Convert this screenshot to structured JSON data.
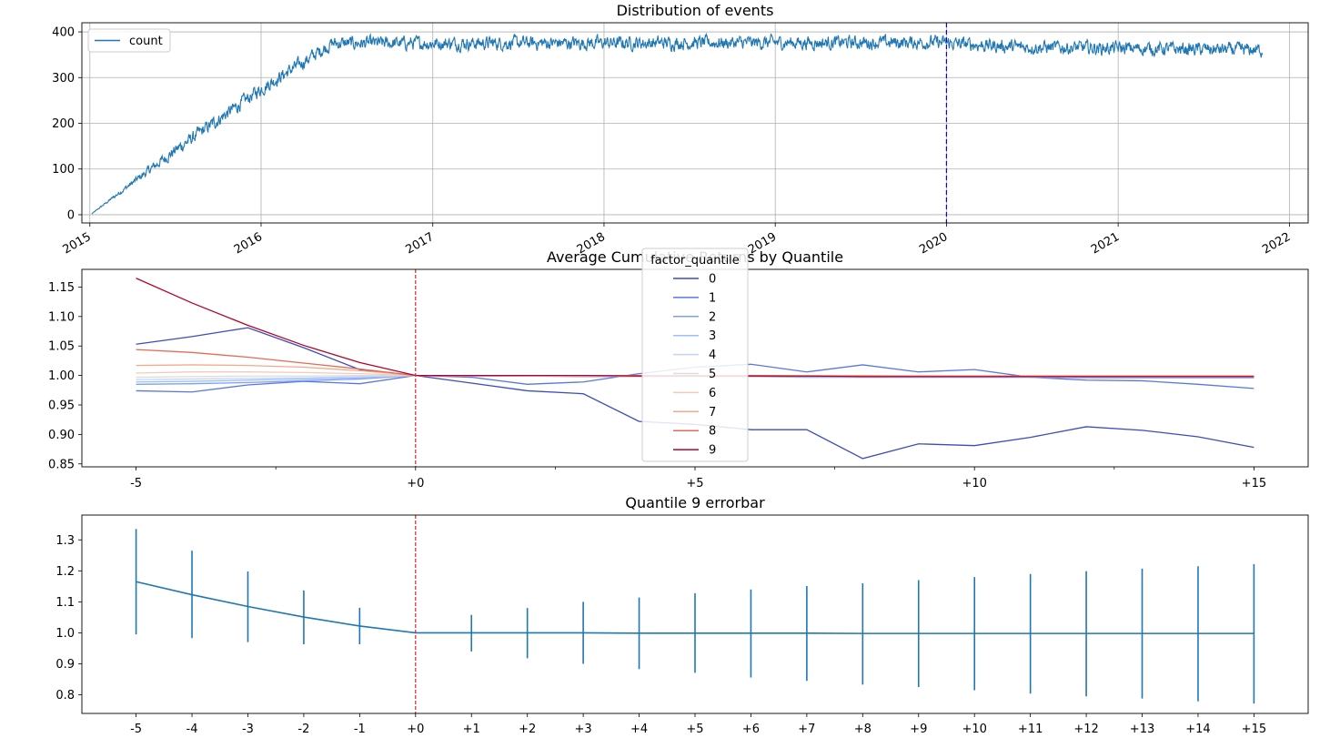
{
  "chart_data": [
    {
      "type": "line",
      "title": "Distribution of events",
      "xlabel": "",
      "ylabel": "",
      "x_ticks": [
        "2015",
        "2016",
        "2017",
        "2018",
        "2019",
        "2020",
        "2021",
        "2022"
      ],
      "y_ticks": [
        "0",
        "100",
        "200",
        "300",
        "400"
      ],
      "xlim": [
        "2014-12-15",
        "2022-02-10"
      ],
      "ylim": [
        -18,
        420
      ],
      "grid": true,
      "legend": {
        "placement": "upper-left",
        "entries": [
          "count"
        ]
      },
      "vline": {
        "x": "2020-01-01",
        "color": "#0000ff",
        "style": "dashed"
      },
      "series": [
        {
          "name": "count",
          "color": "#1f77b4",
          "start": "2015-01-05",
          "end": "2021-11-05",
          "profile": [
            [
              "2015-01-05",
              2
            ],
            [
              "2015-07-01",
              140
            ],
            [
              "2016-01-01",
              275
            ],
            [
              "2016-06-01",
              375
            ],
            [
              "2016-09-01",
              375
            ],
            [
              "2019-12-01",
              377
            ],
            [
              "2020-06-01",
              367
            ],
            [
              "2021-11-05",
              360
            ]
          ],
          "noise_amplitude": 12
        }
      ]
    },
    {
      "type": "line",
      "title": "Average Cumulative Returns by Quantile",
      "xlabel": "",
      "ylabel": "",
      "x": [
        -5,
        -4,
        -3,
        -2,
        -1,
        0,
        1,
        2,
        3,
        4,
        5,
        6,
        7,
        8,
        9,
        10,
        11,
        12,
        13,
        14,
        15
      ],
      "x_ticks": [
        -5,
        0,
        5,
        10,
        15
      ],
      "x_tick_labels": [
        "-5",
        "+0",
        "+5",
        "+10",
        "+15"
      ],
      "y_ticks": [
        "0.85",
        "0.90",
        "0.95",
        "1.00",
        "1.05",
        "1.10",
        "1.15"
      ],
      "xlim": [
        -5.97,
        15.97
      ],
      "ylim": [
        0.845,
        1.18
      ],
      "grid": false,
      "vline": {
        "x": 0,
        "color": "#d62728",
        "style": "dashed"
      },
      "legend": {
        "placement": "upper-center",
        "title": "factor_quantile",
        "entries": [
          "0",
          "1",
          "2",
          "3",
          "4",
          "5",
          "6",
          "7",
          "8",
          "9"
        ]
      },
      "series": [
        {
          "name": "0",
          "color": "#3b4cc0",
          "values": [
            1.053,
            1.066,
            1.081,
            1.047,
            1.01,
            1.0,
            0.987,
            0.974,
            0.969,
            0.922,
            0.917,
            0.908,
            0.908,
            0.859,
            0.884,
            0.881,
            0.895,
            0.913,
            0.907,
            0.896,
            0.878
          ]
        },
        {
          "name": "1",
          "color": "#5977e3",
          "values": [
            0.974,
            0.972,
            0.984,
            0.99,
            0.986,
            1.0,
            0.997,
            0.985,
            0.989,
            1.003,
            1.014,
            1.019,
            1.006,
            1.018,
            1.006,
            1.01,
            0.997,
            0.992,
            0.991,
            0.985,
            0.978
          ]
        },
        {
          "name": "2",
          "color": "#7b9ff9",
          "values": [
            0.985,
            0.986,
            0.988,
            0.991,
            0.994,
            1.0,
            0.999,
            0.999,
            0.998,
            0.998,
            0.998,
            0.998,
            0.997,
            0.997,
            0.997,
            0.997,
            0.997,
            0.996,
            0.996,
            0.996,
            0.996
          ]
        },
        {
          "name": "3",
          "color": "#9ebeff",
          "values": [
            0.989,
            0.99,
            0.992,
            0.994,
            0.996,
            1.0,
            0.999,
            0.999,
            0.999,
            0.998,
            0.998,
            0.998,
            0.998,
            0.997,
            0.997,
            0.997,
            0.997,
            0.997,
            0.997,
            0.997,
            0.997
          ]
        },
        {
          "name": "4",
          "color": "#c0d4f5",
          "values": [
            0.993,
            0.994,
            0.995,
            0.996,
            0.998,
            1.0,
            1.0,
            0.999,
            0.999,
            0.999,
            0.999,
            0.999,
            0.999,
            0.998,
            0.998,
            0.998,
            0.998,
            0.998,
            0.998,
            0.998,
            0.998
          ]
        },
        {
          "name": "5",
          "color": "#dddcdc",
          "values": [
            0.997,
            0.998,
            0.999,
            0.999,
            1.0,
            1.0,
            1.0,
            1.0,
            1.0,
            1.0,
            1.0,
            1.0,
            0.999,
            0.999,
            0.999,
            0.999,
            0.999,
            0.999,
            0.999,
            0.999,
            0.999
          ]
        },
        {
          "name": "6",
          "color": "#f2cbb7",
          "values": [
            1.004,
            1.006,
            1.006,
            1.005,
            1.003,
            1.0,
            1.0,
            1.0,
            1.0,
            1.0,
            1.0,
            1.0,
            1.0,
            1.0,
            0.999,
            0.999,
            0.999,
            0.999,
            0.999,
            0.999,
            0.999
          ]
        },
        {
          "name": "7",
          "color": "#f7a889",
          "values": [
            1.017,
            1.018,
            1.017,
            1.014,
            1.008,
            1.0,
            1.0,
            1.0,
            1.0,
            1.0,
            1.0,
            1.0,
            0.999,
            0.999,
            0.999,
            0.999,
            0.999,
            0.999,
            0.999,
            0.999,
            0.999
          ]
        },
        {
          "name": "8",
          "color": "#e36c55",
          "values": [
            1.044,
            1.039,
            1.031,
            1.021,
            1.011,
            1.0,
            1.0,
            1.0,
            1.0,
            1.0,
            1.0,
            1.0,
            0.999,
            0.999,
            0.999,
            0.999,
            0.999,
            0.999,
            0.999,
            0.999,
            0.999
          ]
        },
        {
          "name": "9",
          "color": "#b40426",
          "values": [
            1.165,
            1.123,
            1.085,
            1.051,
            1.022,
            1.0,
            1.0,
            1.0,
            1.0,
            0.999,
            0.999,
            0.999,
            0.999,
            0.998,
            0.998,
            0.998,
            0.998,
            0.998,
            0.998,
            0.998,
            0.998
          ]
        }
      ]
    },
    {
      "type": "line",
      "title": "Quantile 9 errorbar",
      "xlabel": "",
      "ylabel": "",
      "x": [
        -5,
        -4,
        -3,
        -2,
        -1,
        0,
        1,
        2,
        3,
        4,
        5,
        6,
        7,
        8,
        9,
        10,
        11,
        12,
        13,
        14,
        15
      ],
      "x_tick_labels": [
        "-5",
        "-4",
        "-3",
        "-2",
        "-1",
        "+0",
        "+1",
        "+2",
        "+3",
        "+4",
        "+5",
        "+6",
        "+7",
        "+8",
        "+9",
        "+10",
        "+11",
        "+12",
        "+13",
        "+14",
        "+15"
      ],
      "y_ticks": [
        "0.8",
        "0.9",
        "1.0",
        "1.1",
        "1.2",
        "1.3"
      ],
      "xlim": [
        -5.97,
        15.97
      ],
      "ylim": [
        0.74,
        1.38
      ],
      "grid": false,
      "vline": {
        "x": 0,
        "color": "#d62728",
        "style": "dashed"
      },
      "series": [
        {
          "color": "#1f77b4",
          "values": [
            1.165,
            1.123,
            1.085,
            1.051,
            1.022,
            1.0,
            1.0,
            1.0,
            1.0,
            0.999,
            0.999,
            0.999,
            0.999,
            0.998,
            0.998,
            0.998,
            0.998,
            0.998,
            0.998,
            0.998,
            0.998
          ],
          "error_low": [
            0.995,
            0.983,
            0.97,
            0.963,
            0.963,
            1.0,
            0.94,
            0.918,
            0.9,
            0.883,
            0.871,
            0.856,
            0.845,
            0.833,
            0.825,
            0.815,
            0.804,
            0.795,
            0.788,
            0.779,
            0.772
          ],
          "error_high": [
            1.335,
            1.265,
            1.198,
            1.137,
            1.081,
            1.0,
            1.058,
            1.08,
            1.1,
            1.114,
            1.128,
            1.14,
            1.151,
            1.16,
            1.17,
            1.18,
            1.19,
            1.199,
            1.207,
            1.215,
            1.222
          ]
        }
      ]
    }
  ]
}
